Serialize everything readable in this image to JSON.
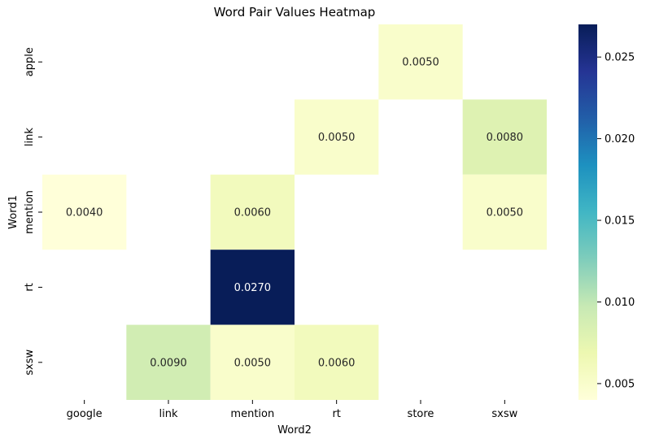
{
  "chart_data": {
    "type": "heatmap",
    "title": "Word Pair Values Heatmap",
    "xlabel": "Word2",
    "ylabel": "Word1",
    "x_categories": [
      "google",
      "link",
      "mention",
      "rt",
      "store",
      "sxsw"
    ],
    "y_categories": [
      "apple",
      "link",
      "mention",
      "rt",
      "sxsw"
    ],
    "cells": [
      {
        "row": "apple",
        "col": "store",
        "value": 0.005,
        "label": "0.0050"
      },
      {
        "row": "link",
        "col": "rt",
        "value": 0.005,
        "label": "0.0050"
      },
      {
        "row": "link",
        "col": "sxsw",
        "value": 0.008,
        "label": "0.0080"
      },
      {
        "row": "mention",
        "col": "google",
        "value": 0.004,
        "label": "0.0040"
      },
      {
        "row": "mention",
        "col": "mention",
        "value": 0.006,
        "label": "0.0060"
      },
      {
        "row": "mention",
        "col": "sxsw",
        "value": 0.005,
        "label": "0.0050"
      },
      {
        "row": "rt",
        "col": "mention",
        "value": 0.027,
        "label": "0.0270"
      },
      {
        "row": "sxsw",
        "col": "link",
        "value": 0.009,
        "label": "0.0090"
      },
      {
        "row": "sxsw",
        "col": "mention",
        "value": 0.005,
        "label": "0.0050"
      },
      {
        "row": "sxsw",
        "col": "rt",
        "value": 0.006,
        "label": "0.0060"
      }
    ],
    "colorbar": {
      "colormap": "YlGnBu",
      "min": 0.004,
      "max": 0.027,
      "ticks": [
        0.005,
        0.01,
        0.015,
        0.02,
        0.025
      ],
      "tick_labels": [
        "0.005",
        "0.010",
        "0.015",
        "0.020",
        "0.025"
      ]
    },
    "grid": false,
    "legend": "colorbar-right"
  }
}
